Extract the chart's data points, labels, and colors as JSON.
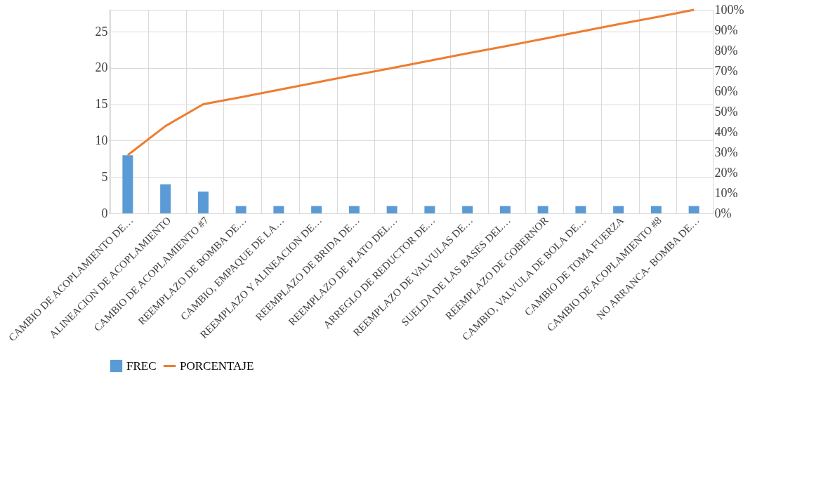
{
  "chart_data": {
    "type": "bar",
    "categories": [
      "CAMBIO  DE ACOPLAMIENTO DE…",
      "ALINEACION DE ACOPLAMIENTO",
      "CAMBIO DE ACOPLAMIENTO #7",
      "REEMPLAZO  DE BOMBA DE…",
      "CAMBIO, EMPAQUE DE LA…",
      "REEMPLAZO Y ALINEACION DE…",
      "REEMPLAZO DE BRIDA DE…",
      "REEMPLAZO DE PLATO DEL…",
      "ARREGLO DE REDUCTOR DE…",
      "REEMPLAZO DE VALVULAS DE…",
      "SUELDA DE LAS BASES DEL…",
      "REEMPLAZO DE  GOBERNOR",
      "CAMBIO, VALVULA DE BOLA DE…",
      "CAMBIO DE TOMA FUERZA",
      "CAMBIO DE ACOPLAMIENTO #8",
      "NO ARRANCA- BOMBA DE…"
    ],
    "series": [
      {
        "name": "FREC",
        "color": "#5b9bd5",
        "values": [
          8,
          4,
          3,
          1,
          1,
          1,
          1,
          1,
          1,
          1,
          1,
          1,
          1,
          1,
          1,
          1
        ]
      },
      {
        "name": "PORCENTAJE",
        "type": "line",
        "axis": "y2",
        "color": "#ed7d31",
        "values": [
          28.6,
          42.9,
          53.6,
          57.1,
          60.7,
          64.3,
          67.9,
          71.4,
          75.0,
          78.6,
          82.1,
          85.7,
          89.3,
          92.9,
          96.4,
          100
        ]
      }
    ],
    "ylim": [
      0,
      28
    ],
    "yticks": [
      0,
      5,
      10,
      15,
      20,
      25
    ],
    "y2lim": [
      0,
      100
    ],
    "y2ticks": [
      {
        "value": 0,
        "label": "0%"
      },
      {
        "value": 10,
        "label": "10%"
      },
      {
        "value": 20,
        "label": "20%"
      },
      {
        "value": 30,
        "label": "30%"
      },
      {
        "value": 40,
        "label": "40%"
      },
      {
        "value": 50,
        "label": "50%"
      },
      {
        "value": 60,
        "label": "60%"
      },
      {
        "value": 70,
        "label": "70%"
      },
      {
        "value": 80,
        "label": "80%"
      },
      {
        "value": 90,
        "label": "90%"
      },
      {
        "value": 100,
        "label": "100%"
      }
    ],
    "grid": true,
    "legend": "bottom",
    "marker": "none",
    "line_style": "solid"
  }
}
